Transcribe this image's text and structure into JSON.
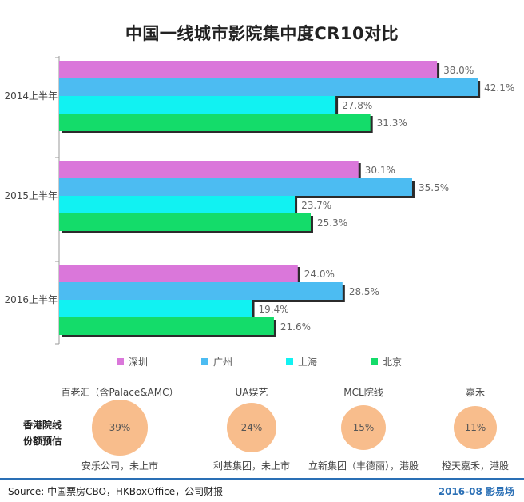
{
  "title": "中国一线城市影院集中度CR10对比",
  "chart_data": {
    "type": "bar",
    "orientation": "horizontal",
    "categories": [
      "2014上半年",
      "2015上半年",
      "2016上半年"
    ],
    "series": [
      {
        "name": "深圳",
        "color": "#da77da",
        "values": [
          38.0,
          30.1,
          24.0
        ],
        "labels": [
          "38.0%",
          "30.1%",
          "24.0%"
        ]
      },
      {
        "name": "广州",
        "color": "#4cbcf2",
        "values": [
          42.1,
          35.5,
          28.5
        ],
        "labels": [
          "42.1%",
          "35.5%",
          "28.5%"
        ]
      },
      {
        "name": "上海",
        "color": "#11f2f2",
        "values": [
          27.8,
          23.7,
          19.4
        ],
        "labels": [
          "27.8%",
          "23.7%",
          "19.4%"
        ]
      },
      {
        "name": "北京",
        "color": "#14dc6a",
        "values": [
          31.3,
          25.3,
          21.6
        ],
        "labels": [
          "31.3%",
          "25.3%",
          "21.6%"
        ]
      }
    ],
    "legend_position": "bottom"
  },
  "hongkong": {
    "row_label_line1": "香港院线",
    "row_label_line2": "份额预估",
    "items": [
      {
        "name": "百老汇（含Palace&AMC）",
        "share": "39%",
        "share_value": 39,
        "note": "安乐公司，未上市"
      },
      {
        "name": "UA娱艺",
        "share": "24%",
        "share_value": 24,
        "note": "利基集团，未上市"
      },
      {
        "name": "MCL院线",
        "share": "15%",
        "share_value": 15,
        "note": "立新集团（丰德丽），港股"
      },
      {
        "name": "嘉禾",
        "share": "11%",
        "share_value": 11,
        "note": "橙天嘉禾，港股"
      }
    ]
  },
  "footer": {
    "source": "Source: 中国票房CBO，HKBoxOffice，公司财报",
    "brand": "2016-08  影易场"
  }
}
